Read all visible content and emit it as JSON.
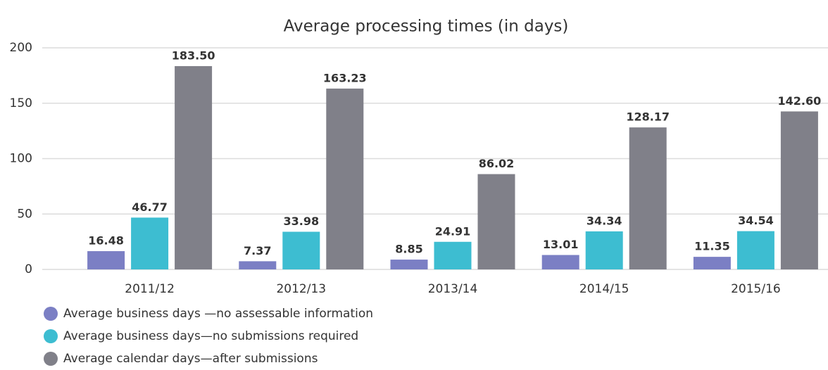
{
  "chart_data": {
    "type": "bar",
    "title": "Average processing times (in days)",
    "categories": [
      "2011/12",
      "2012/13",
      "2013/14",
      "2014/15",
      "2015/16"
    ],
    "series": [
      {
        "name": "Average business days —no assessable information",
        "color": "#7b7fc4",
        "values": [
          16.48,
          7.37,
          8.85,
          13.01,
          11.35
        ]
      },
      {
        "name": "Average business days—no submissions required",
        "color": "#3dbdd1",
        "values": [
          46.77,
          33.98,
          24.91,
          34.34,
          34.54
        ]
      },
      {
        "name": "Average calendar days—after submissions",
        "color": "#808089",
        "values": [
          183.5,
          163.23,
          86.02,
          128.17,
          142.6
        ],
        "value_labels": [
          "183.50",
          "163.23",
          "86.02",
          "128.17",
          "142.60"
        ]
      }
    ],
    "ylim": [
      0,
      200
    ],
    "yticks": [
      0,
      50,
      100,
      150,
      200
    ],
    "grid": true
  }
}
